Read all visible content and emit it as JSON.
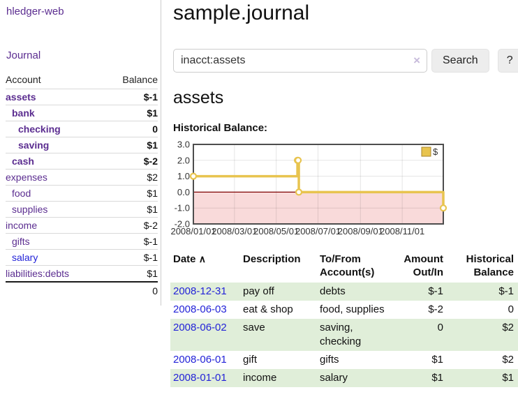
{
  "app": {
    "title": "hledger-web"
  },
  "sidebar": {
    "journal_label": "Journal",
    "accounts_table": {
      "headers": {
        "account": "Account",
        "balance": "Balance"
      },
      "rows": [
        {
          "name": "assets",
          "level": 1,
          "strong": true,
          "balance": "$-1",
          "balance_tone": "negative"
        },
        {
          "name": "bank",
          "level": 2,
          "strong": true,
          "balance": "$1",
          "balance_tone": "normal"
        },
        {
          "name": "checking",
          "level": 3,
          "strong": true,
          "balance": "0",
          "balance_tone": "normal"
        },
        {
          "name": "saving",
          "level": 3,
          "strong": true,
          "balance": "$1",
          "balance_tone": "normal"
        },
        {
          "name": "cash",
          "level": 2,
          "strong": true,
          "balance": "$-2",
          "balance_tone": "negative"
        },
        {
          "name": "expenses",
          "level": 1,
          "strong": false,
          "balance": "$2",
          "balance_tone": "normal"
        },
        {
          "name": "food",
          "level": 2,
          "strong": false,
          "balance": "$1",
          "balance_tone": "normal"
        },
        {
          "name": "supplies",
          "level": 2,
          "strong": false,
          "balance": "$1",
          "balance_tone": "normal"
        },
        {
          "name": "income",
          "level": 1,
          "strong": false,
          "balance": "$-2",
          "balance_tone": "negative-muted"
        },
        {
          "name": "gifts",
          "level": 2,
          "strong": false,
          "balance": "$-1",
          "balance_tone": "negative-muted"
        },
        {
          "name": "salary",
          "level": 2,
          "strong": false,
          "balance": "$-1",
          "balance_tone": "negative-muted",
          "link_tone": "blue"
        },
        {
          "name": "liabilities:debts",
          "level": 1,
          "strong": false,
          "balance": "$1",
          "balance_tone": "normal"
        }
      ],
      "total": "0"
    }
  },
  "main": {
    "title": "sample.journal",
    "search": {
      "value": "inacct:assets",
      "clear_icon": "×",
      "button_label": "Search",
      "help_label": "?"
    },
    "account_heading": "assets",
    "chart_label": "Historical Balance:"
  },
  "chart_data": {
    "type": "line",
    "step": true,
    "title": "Historical Balance:",
    "legend": [
      {
        "label": "$",
        "position": "top-right"
      }
    ],
    "x_range": [
      "2008-01-01",
      "2008-12-31"
    ],
    "ylim": [
      -2,
      3
    ],
    "y_ticks": [
      3,
      2,
      1,
      0,
      -1,
      -2
    ],
    "x_ticks": [
      "2008/01/01",
      "2008/03/01",
      "2008/05/01",
      "2008/07/01",
      "2008/09/01",
      "2008/11/01"
    ],
    "series": [
      {
        "name": "$",
        "points": [
          {
            "date": "2008-01-01",
            "value": 1
          },
          {
            "date": "2008-06-01",
            "value": 2
          },
          {
            "date": "2008-06-02",
            "value": 2
          },
          {
            "date": "2008-06-03",
            "value": 0
          },
          {
            "date": "2008-12-31",
            "value": -1
          }
        ]
      }
    ],
    "grid": true,
    "negative_region_shaded": true
  },
  "transactions": {
    "headers": {
      "date": "Date",
      "sort_indicator": "∧",
      "description": "Description",
      "accounts": "To/From Account(s)",
      "amount": "Amount Out/In",
      "balance": "Historical Balance"
    },
    "rows": [
      {
        "date": "2008-12-31",
        "description": "pay off",
        "accounts": "debts",
        "amount": "$-1",
        "amount_tone": "negative",
        "balance": "$-1",
        "balance_tone": "negative"
      },
      {
        "date": "2008-06-03",
        "description": "eat & shop",
        "accounts": "food, supplies",
        "amount": "$-2",
        "amount_tone": "negative",
        "balance": "0",
        "balance_tone": "normal"
      },
      {
        "date": "2008-06-02",
        "description": "save",
        "accounts": "saving, checking",
        "amount": "0",
        "amount_tone": "normal",
        "balance": "$2",
        "balance_tone": "normal"
      },
      {
        "date": "2008-06-01",
        "description": "gift",
        "accounts": "gifts",
        "amount": "$1",
        "amount_tone": "normal",
        "balance": "$2",
        "balance_tone": "normal"
      },
      {
        "date": "2008-01-01",
        "description": "income",
        "accounts": "salary",
        "amount": "$1",
        "amount_tone": "normal",
        "balance": "$1",
        "balance_tone": "normal"
      }
    ]
  },
  "colors": {
    "link_purple": "#5b2d90",
    "link_blue": "#2323d8",
    "negative": "#8b1c1c",
    "negative_muted": "#b26e6e",
    "row_stripe_green": "#e0eed9",
    "chart_line": "#e8c44f",
    "chart_negative_bg": "#f9dada",
    "chart_zero_line": "#7f0000",
    "chart_border": "#4d4d4d"
  }
}
